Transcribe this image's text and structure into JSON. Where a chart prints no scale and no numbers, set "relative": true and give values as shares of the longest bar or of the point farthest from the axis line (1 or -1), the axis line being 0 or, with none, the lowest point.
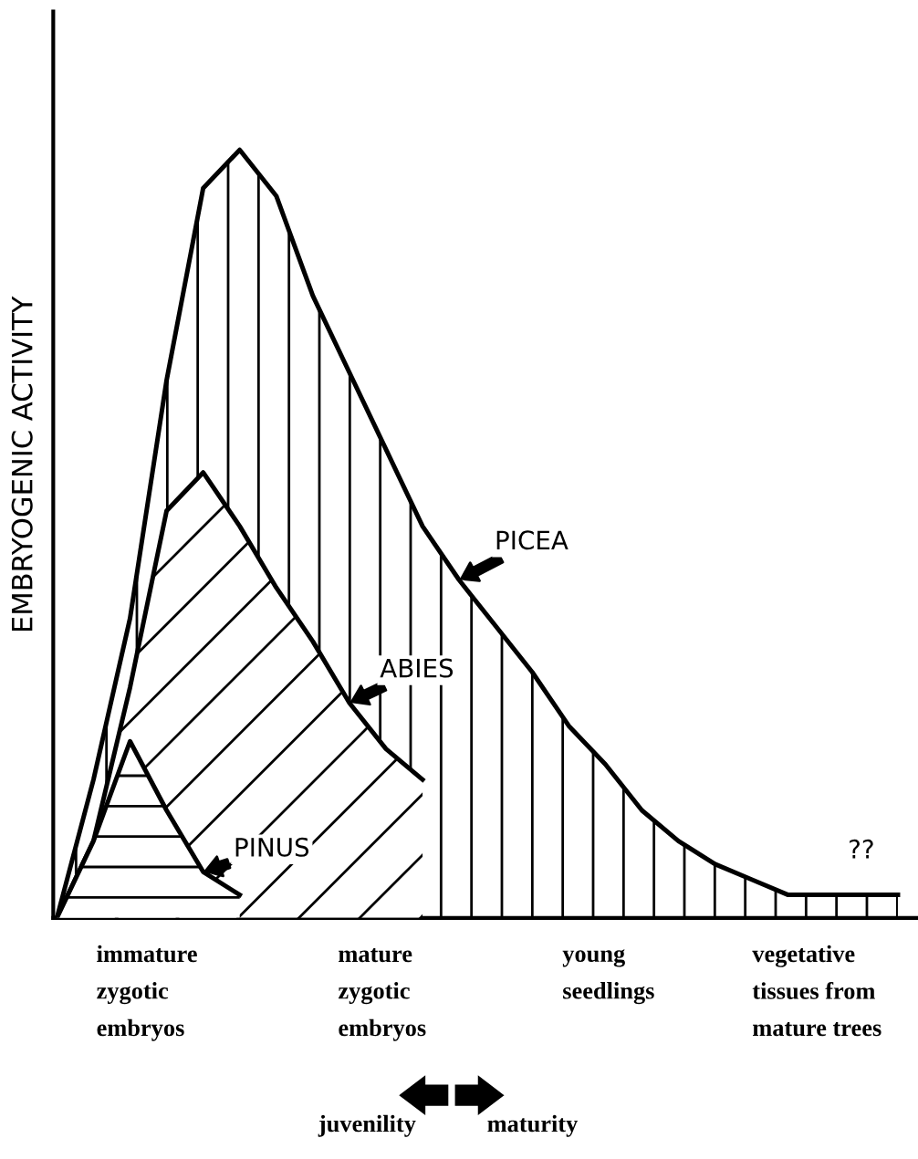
{
  "chart_data": {
    "type": "area",
    "relative": true,
    "ylabel": "EMBRYOGENIC ACTIVITY",
    "categories": [
      null,
      null,
      null,
      null,
      null,
      null,
      null,
      null,
      null,
      null,
      null,
      null,
      null,
      null,
      null,
      null,
      null,
      null,
      null,
      null,
      null,
      null,
      null,
      null
    ],
    "series": [
      {
        "name": "PICEA",
        "color": "#000000",
        "values": [
          0,
          0.18,
          0.39,
          0.7,
          0.95,
          1.0,
          0.94,
          0.81,
          0.71,
          0.61,
          0.51,
          0.44,
          0.38,
          0.32,
          0.25,
          0.2,
          0.14,
          0.1,
          0.07,
          0.05,
          0.03,
          0.03,
          0.03,
          0.03
        ]
      },
      {
        "name": "ABIES",
        "color": "#000000",
        "values": [
          0,
          0.1,
          0.3,
          0.53,
          0.58,
          0.51,
          0.43,
          0.36,
          0.28,
          0.22,
          0.18,
          null,
          null,
          null,
          null,
          null,
          null,
          null,
          null,
          null,
          null,
          null,
          null,
          null
        ]
      },
      {
        "name": "PINUS",
        "color": "#000000",
        "values": [
          0,
          0.1,
          0.23,
          0.14,
          0.06,
          0.03,
          null,
          null,
          null,
          null,
          null,
          null,
          null,
          null,
          null,
          null,
          null,
          null,
          null,
          null,
          null,
          null,
          null,
          null
        ]
      }
    ],
    "annotations": [
      "immature\nzygotic\nembryos",
      "mature\nzygotic\nembryos",
      "young\nseedlings",
      "vegetative\ntissues from\nmature trees",
      "??",
      "juvenility",
      "maturity"
    ]
  }
}
